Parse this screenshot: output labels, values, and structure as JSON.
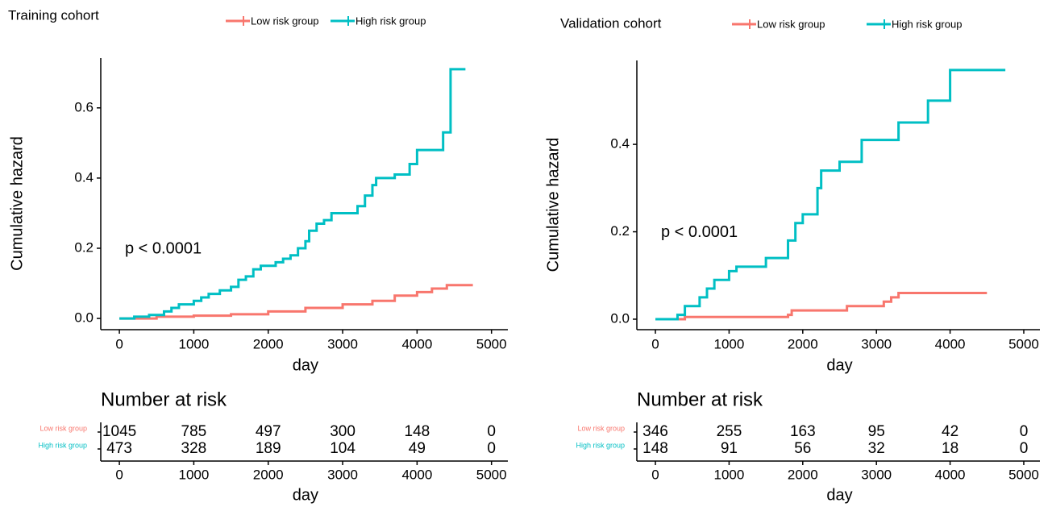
{
  "chart_data": [
    {
      "type": "line",
      "title": "Training cohort",
      "xlabel": "day",
      "ylabel": "Cumulative hazard",
      "annotation": "p < 0.0001",
      "xlim": [
        -250,
        5220
      ],
      "ylim": [
        -0.032,
        0.742
      ],
      "xticks": [
        0,
        1000,
        2000,
        3000,
        4000,
        5000
      ],
      "yticks": [
        {
          "value": 0,
          "label": "0.0"
        },
        0.2,
        0.4,
        0.6
      ],
      "series": [
        {
          "name": "Low risk group",
          "color": "#f8766d",
          "x": [
            0,
            500,
            1000,
            1500,
            2000,
            2500,
            3000,
            3400,
            3700,
            4000,
            4200,
            4400,
            4750
          ],
          "values": [
            0,
            0.005,
            0.008,
            0.012,
            0.02,
            0.03,
            0.04,
            0.05,
            0.065,
            0.075,
            0.085,
            0.095,
            0.095
          ]
        },
        {
          "name": "High risk group",
          "color": "#00bfc4",
          "x": [
            0,
            200,
            400,
            600,
            700,
            800,
            1000,
            1100,
            1200,
            1350,
            1500,
            1600,
            1700,
            1800,
            1900,
            2100,
            2200,
            2300,
            2400,
            2500,
            2550,
            2650,
            2750,
            2850,
            3200,
            3300,
            3400,
            3450,
            3700,
            3900,
            4000,
            4350,
            4450,
            4650
          ],
          "values": [
            0,
            0.005,
            0.01,
            0.02,
            0.03,
            0.04,
            0.05,
            0.06,
            0.07,
            0.08,
            0.09,
            0.11,
            0.12,
            0.14,
            0.15,
            0.16,
            0.17,
            0.18,
            0.2,
            0.22,
            0.25,
            0.27,
            0.28,
            0.3,
            0.32,
            0.35,
            0.38,
            0.4,
            0.41,
            0.44,
            0.48,
            0.53,
            0.71,
            0.71
          ]
        }
      ],
      "risk_table": {
        "title": "Number at risk",
        "values": [
          [
            1045,
            785,
            497,
            300,
            148,
            0
          ],
          [
            473,
            328,
            189,
            104,
            49,
            0
          ]
        ]
      }
    },
    {
      "type": "line",
      "title": "Validation cohort",
      "xlabel": "day",
      "ylabel": "Cumulative hazard",
      "annotation": "p < 0.0001",
      "xlim": [
        -252,
        5219
      ],
      "ylim": [
        -0.024,
        0.592
      ],
      "xticks": [
        0,
        1000,
        2000,
        3000,
        4000,
        5000
      ],
      "yticks": [
        {
          "value": 0,
          "label": "0.0"
        },
        0.2,
        0.4
      ],
      "series": [
        {
          "name": "Low risk group",
          "color": "#f8766d",
          "x": [
            0,
            400,
            1800,
            1850,
            2600,
            3100,
            3200,
            3300,
            4500
          ],
          "values": [
            0,
            0.005,
            0.01,
            0.02,
            0.03,
            0.04,
            0.05,
            0.06,
            0.06
          ]
        },
        {
          "name": "High risk group",
          "color": "#00bfc4",
          "x": [
            0,
            300,
            400,
            600,
            700,
            800,
            1000,
            1100,
            1500,
            1800,
            1900,
            2000,
            2200,
            2250,
            2500,
            2800,
            3300,
            3700,
            4000,
            4750
          ],
          "values": [
            0,
            0.01,
            0.03,
            0.05,
            0.07,
            0.09,
            0.11,
            0.12,
            0.14,
            0.18,
            0.22,
            0.24,
            0.3,
            0.34,
            0.36,
            0.41,
            0.45,
            0.5,
            0.57,
            0.57
          ]
        }
      ],
      "risk_table": {
        "title": "Number at risk",
        "values": [
          [
            346,
            255,
            163,
            95,
            42,
            0
          ],
          [
            148,
            91,
            56,
            32,
            18,
            0
          ]
        ]
      }
    }
  ]
}
